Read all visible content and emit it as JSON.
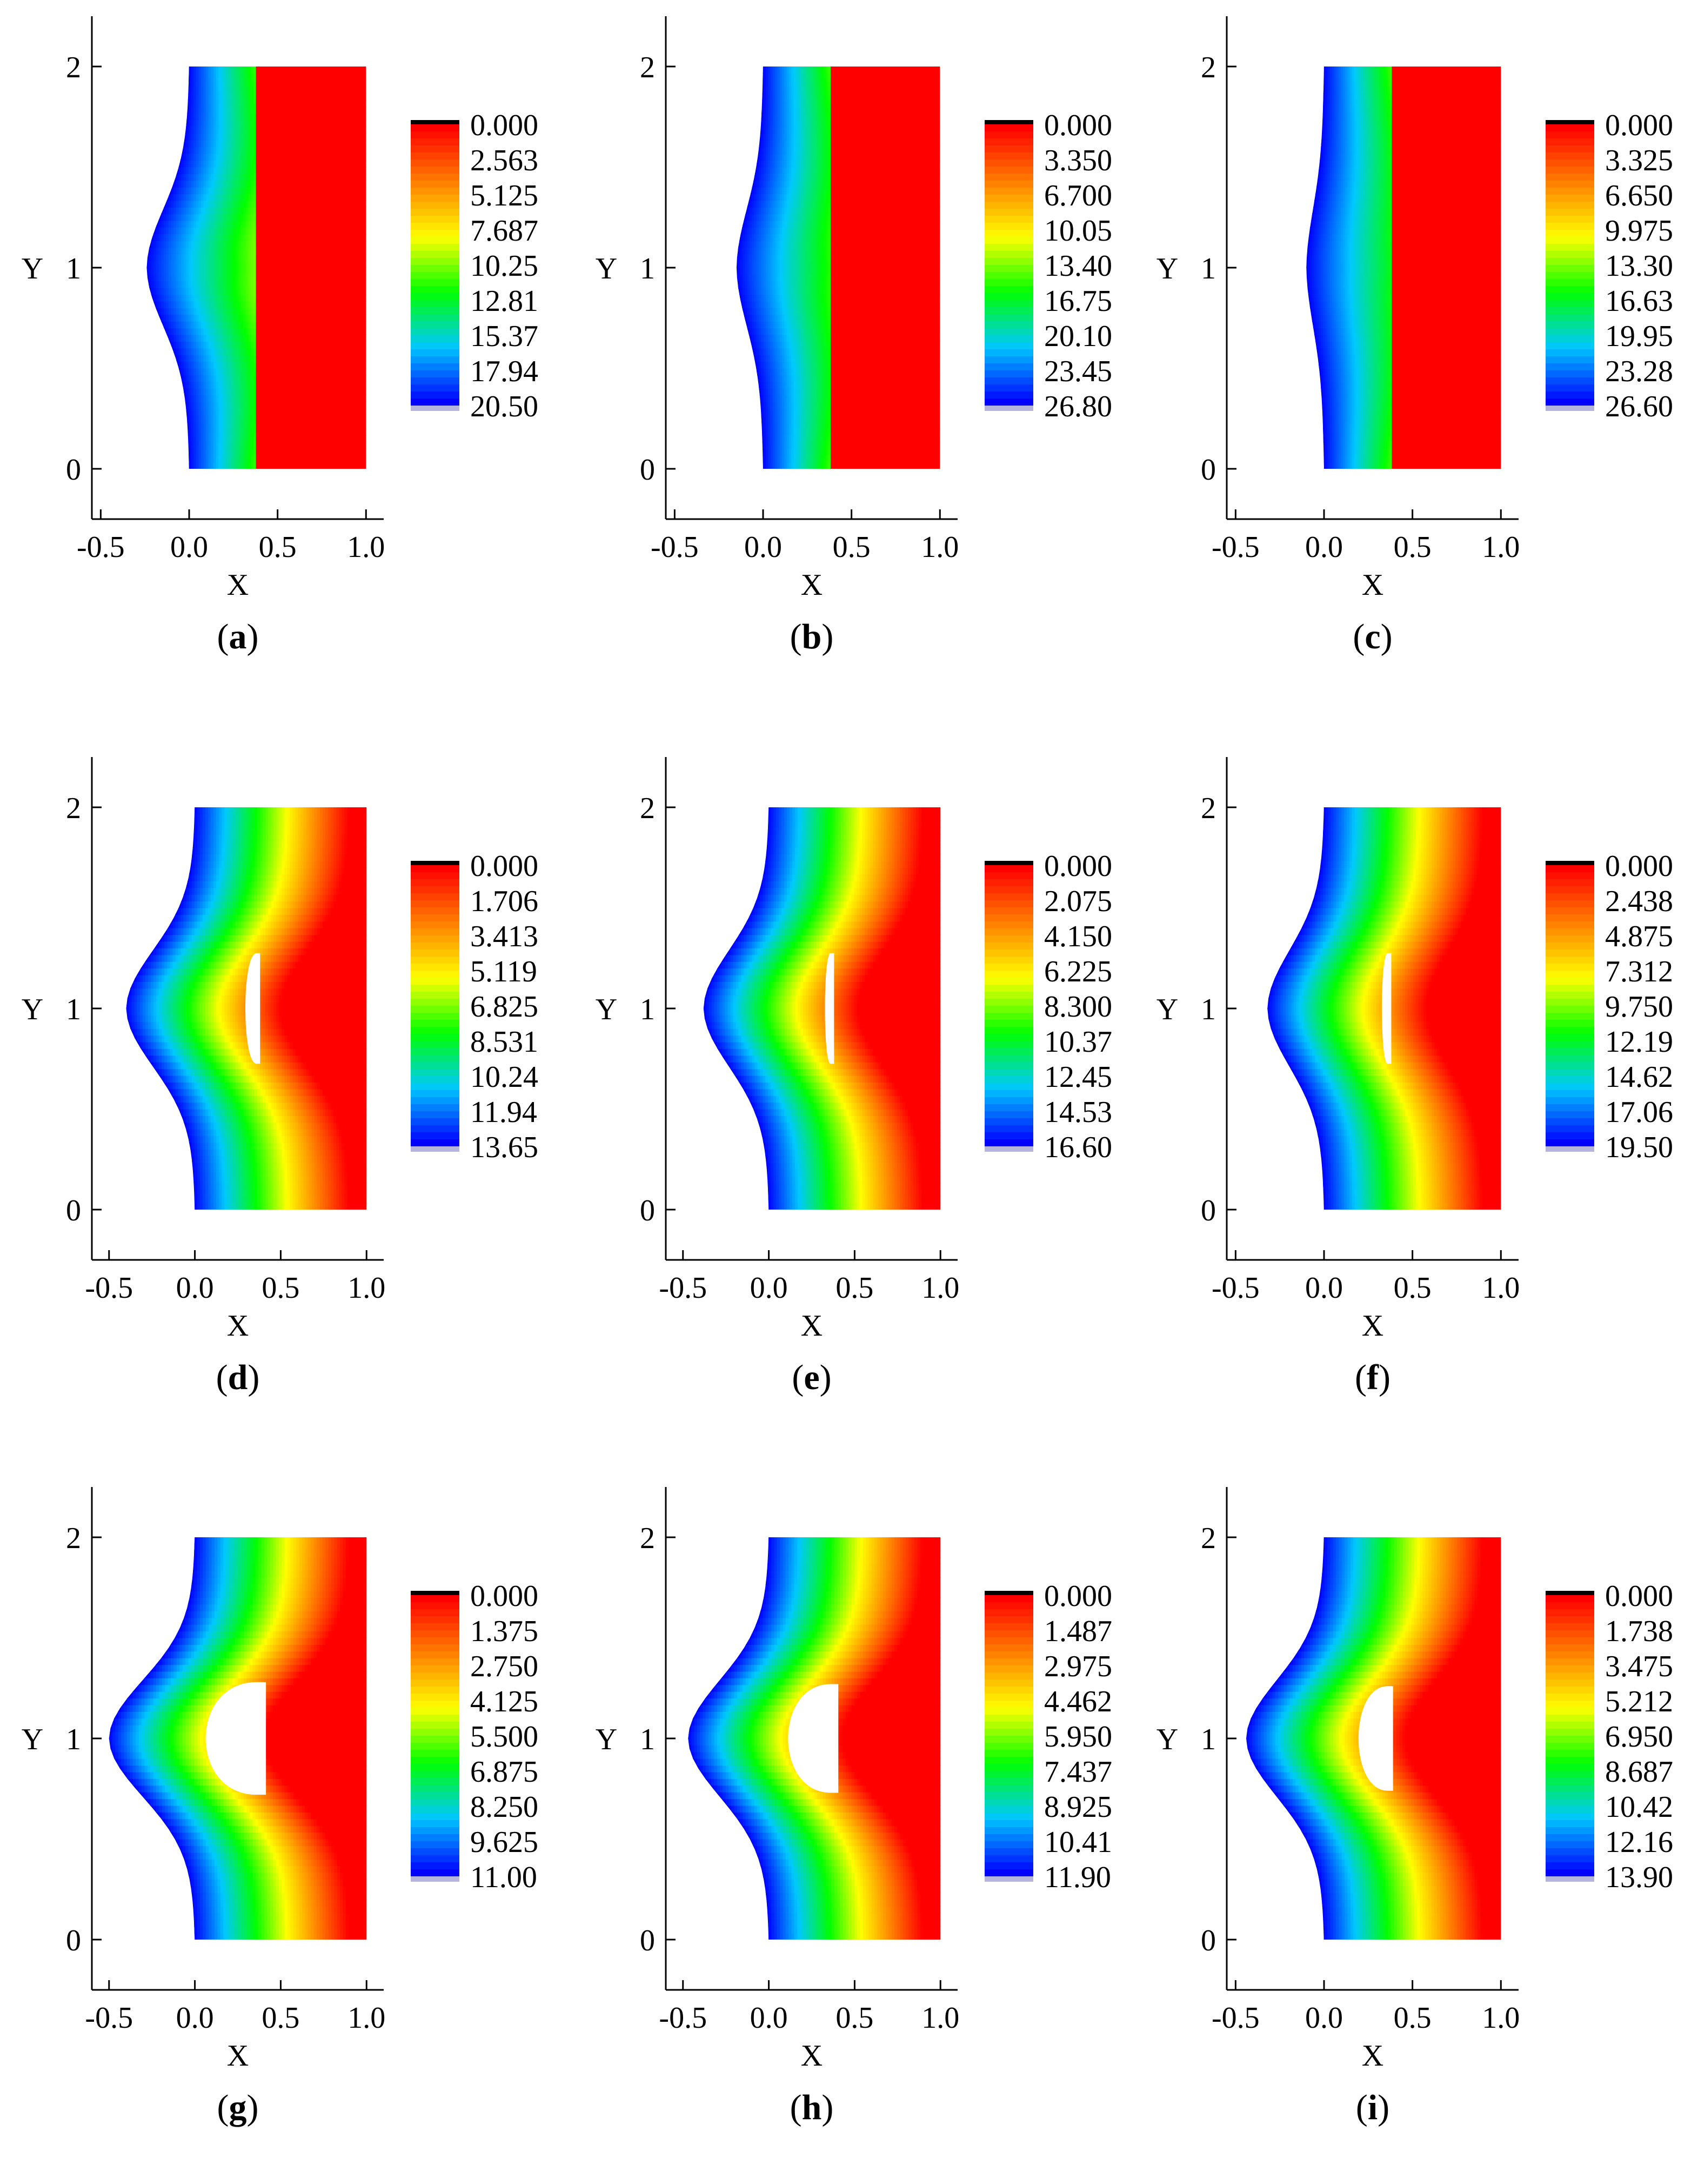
{
  "figure": {
    "axis_x_label": "X",
    "axis_y_label": "Y",
    "x_ticks": [
      "-0.5",
      "0.0",
      "0.5",
      "1.0"
    ],
    "y_ticks": [
      "0",
      "1",
      "2"
    ]
  },
  "colors": {
    "colormap": [
      "#0000ff",
      "#00c8ff",
      "#00ff00",
      "#ffff00",
      "#ff8000",
      "#ff0000"
    ],
    "legend_top_cap": "#000000",
    "legend_bottom_cap": "#b4b4dc",
    "hole": "#ffffff"
  },
  "chart_data": [
    {
      "label": "a",
      "type": "heatmap",
      "xlim": [
        -0.55,
        1.1
      ],
      "ylim": [
        -0.25,
        2.25
      ],
      "left_bulge": 0.22,
      "cavity": "slit",
      "cavity_width": 0.0,
      "cavity_height": 0.0,
      "legend_values": [
        "0.000",
        "2.563",
        "5.125",
        "7.687",
        "10.25",
        "12.81",
        "15.37",
        "17.94",
        "20.50"
      ]
    },
    {
      "label": "b",
      "type": "heatmap",
      "xlim": [
        -0.55,
        1.1
      ],
      "ylim": [
        -0.25,
        2.25
      ],
      "left_bulge": 0.13,
      "cavity": "slit",
      "cavity_width": 0.0,
      "cavity_height": 0.0,
      "legend_values": [
        "0.000",
        "3.350",
        "6.700",
        "10.05",
        "13.40",
        "16.75",
        "20.10",
        "23.45",
        "26.80"
      ]
    },
    {
      "label": "c",
      "type": "heatmap",
      "xlim": [
        -0.55,
        1.1
      ],
      "ylim": [
        -0.25,
        2.25
      ],
      "left_bulge": 0.08,
      "cavity": "slit",
      "cavity_width": 0.0,
      "cavity_height": 0.0,
      "legend_values": [
        "0.000",
        "3.325",
        "6.650",
        "9.975",
        "13.30",
        "16.63",
        "19.95",
        "23.28",
        "26.60"
      ]
    },
    {
      "label": "d",
      "type": "heatmap",
      "xlim": [
        -0.6,
        1.1
      ],
      "ylim": [
        -0.25,
        2.25
      ],
      "left_bulge": 0.38,
      "cavity": "crack",
      "cavity_width": 0.08,
      "cavity_height": 0.55,
      "legend_values": [
        "0.000",
        "1.706",
        "3.413",
        "5.119",
        "6.825",
        "8.531",
        "10.24",
        "11.94",
        "13.65"
      ]
    },
    {
      "label": "e",
      "type": "heatmap",
      "xlim": [
        -0.6,
        1.1
      ],
      "ylim": [
        -0.25,
        2.25
      ],
      "left_bulge": 0.36,
      "cavity": "crack",
      "cavity_width": 0.04,
      "cavity_height": 0.55,
      "legend_values": [
        "0.000",
        "2.075",
        "4.150",
        "6.225",
        "8.300",
        "10.37",
        "12.45",
        "14.53",
        "16.60"
      ]
    },
    {
      "label": "f",
      "type": "heatmap",
      "xlim": [
        -0.55,
        1.1
      ],
      "ylim": [
        -0.25,
        2.25
      ],
      "left_bulge": 0.3,
      "cavity": "crack",
      "cavity_width": 0.04,
      "cavity_height": 0.55,
      "legend_values": [
        "0.000",
        "2.438",
        "4.875",
        "7.312",
        "9.750",
        "12.19",
        "14.62",
        "17.06",
        "19.50"
      ]
    },
    {
      "label": "g",
      "type": "heatmap",
      "xlim": [
        -0.6,
        1.1
      ],
      "ylim": [
        -0.25,
        2.25
      ],
      "left_bulge": 0.48,
      "cavity": "hole",
      "cavity_width": 0.36,
      "cavity_height": 0.56,
      "legend_values": [
        "0.000",
        "1.375",
        "2.750",
        "4.125",
        "5.500",
        "6.875",
        "8.250",
        "9.625",
        "11.00"
      ]
    },
    {
      "label": "h",
      "type": "heatmap",
      "xlim": [
        -0.6,
        1.1
      ],
      "ylim": [
        -0.25,
        2.25
      ],
      "left_bulge": 0.45,
      "cavity": "hole",
      "cavity_width": 0.3,
      "cavity_height": 0.54,
      "legend_values": [
        "0.000",
        "1.487",
        "2.975",
        "4.462",
        "5.950",
        "7.437",
        "8.925",
        "10.41",
        "11.90"
      ]
    },
    {
      "label": "i",
      "type": "heatmap",
      "xlim": [
        -0.55,
        1.1
      ],
      "ylim": [
        -0.25,
        2.25
      ],
      "left_bulge": 0.42,
      "cavity": "hole",
      "cavity_width": 0.2,
      "cavity_height": 0.52,
      "legend_values": [
        "0.000",
        "1.738",
        "3.475",
        "5.212",
        "6.950",
        "8.687",
        "10.42",
        "12.16",
        "13.90"
      ]
    }
  ]
}
